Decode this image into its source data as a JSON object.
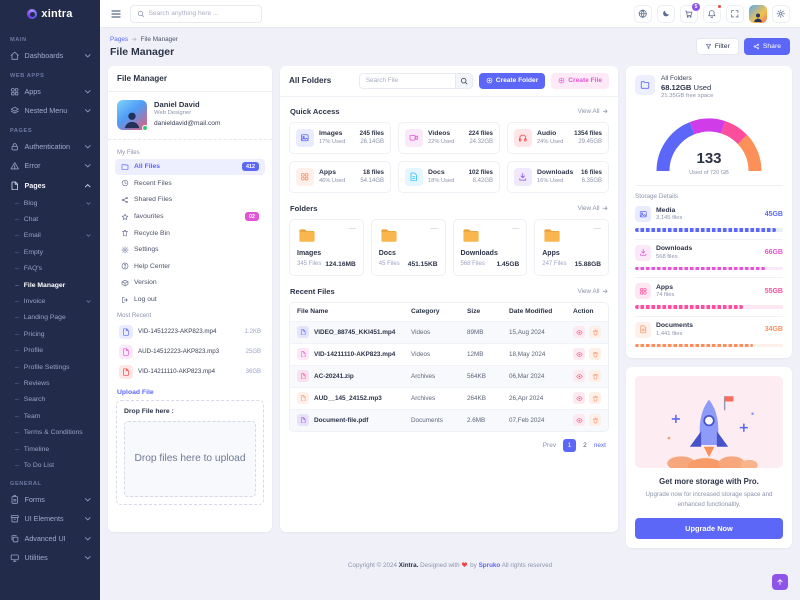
{
  "header": {
    "logo_text": "xintra",
    "search_placeholder": "Search anything here ...",
    "cart_badge": "5",
    "icons": [
      "language-icon",
      "dark-mode-icon",
      "cart-icon",
      "notifications-icon",
      "fullscreen-icon",
      "avatar",
      "settings-icon"
    ]
  },
  "page": {
    "breadcrumb": [
      "Pages",
      "File Manager"
    ],
    "title": "File Manager",
    "filter_label": "Filter",
    "share_label": "Share"
  },
  "sidebar": {
    "sections": [
      {
        "label": "Main",
        "items": [
          {
            "label": "Dashboards",
            "icon": "home-icon",
            "chevron": "down"
          }
        ]
      },
      {
        "label": "Web Apps",
        "items": [
          {
            "label": "Apps",
            "icon": "apps-icon",
            "chevron": "down"
          },
          {
            "label": "Nested Menu",
            "icon": "layers-icon",
            "chevron": "down"
          }
        ]
      },
      {
        "label": "Pages",
        "items": [
          {
            "label": "Authentication",
            "icon": "lock-icon",
            "chevron": "down"
          },
          {
            "label": "Error",
            "icon": "error-icon",
            "chevron": "down"
          },
          {
            "label": "Pages",
            "icon": "pages-icon",
            "chevron": "up",
            "expanded": true,
            "children": [
              {
                "label": "Blog",
                "chevron": "down"
              },
              {
                "label": "Chat"
              },
              {
                "label": "Email",
                "chevron": "down"
              },
              {
                "label": "Empty"
              },
              {
                "label": "FAQ's"
              },
              {
                "label": "File Manager",
                "active": true
              },
              {
                "label": "Invoice",
                "chevron": "down"
              },
              {
                "label": "Landing Page"
              },
              {
                "label": "Pricing"
              },
              {
                "label": "Profile"
              },
              {
                "label": "Profile Settings"
              },
              {
                "label": "Reviews"
              },
              {
                "label": "Search"
              },
              {
                "label": "Team"
              },
              {
                "label": "Terms & Conditions"
              },
              {
                "label": "Timeline"
              },
              {
                "label": "To Do List"
              }
            ]
          }
        ]
      },
      {
        "label": "General",
        "items": [
          {
            "label": "Forms",
            "icon": "forms-icon",
            "chevron": "down"
          },
          {
            "label": "UI Elements",
            "icon": "ui-elements-icon",
            "chevron": "down"
          },
          {
            "label": "Advanced UI",
            "icon": "advanced-ui-icon",
            "chevron": "down"
          },
          {
            "label": "Utilities",
            "icon": "utilities-icon",
            "chevron": "down"
          }
        ]
      }
    ]
  },
  "file_panel": {
    "title": "File Manager",
    "user": {
      "name": "Daniel David",
      "role": "Web Designer",
      "email": "danieldavid@mail.com"
    },
    "my_files_label": "My Files",
    "menu": [
      {
        "label": "All Files",
        "icon": "folder-icon",
        "badge": "412",
        "badge_color": "#5c67f7",
        "active": true
      },
      {
        "label": "Recent Files",
        "icon": "clock-icon"
      },
      {
        "label": "Shared Files",
        "icon": "share-icon"
      },
      {
        "label": "favourites",
        "icon": "star-icon",
        "badge": "02",
        "badge_color": "#e354d4"
      },
      {
        "label": "Recycle Bin",
        "icon": "trash-icon"
      },
      {
        "label": "Settings",
        "icon": "gear-icon"
      },
      {
        "label": "Help Center",
        "icon": "help-icon"
      },
      {
        "label": "Version",
        "icon": "version-icon"
      },
      {
        "label": "Log out",
        "icon": "logout-icon"
      }
    ],
    "most_recent_label": "Most Recent",
    "most_recent": [
      {
        "name": "VID-14512223-AKP823.mp4",
        "size": "1.2KB",
        "color": "#5c67f7"
      },
      {
        "name": "AUD-14512223-AKP823.mp3",
        "size": "25GB",
        "color": "#e354d4"
      },
      {
        "name": "VID-14211110-AKP823.mp4",
        "size": "36GB",
        "color": "#fb4242"
      }
    ],
    "upload_label": "Upload File",
    "drop_title": "Drop File here :",
    "drop_text": "Drop files here to upload"
  },
  "center": {
    "title": "All Folders",
    "search_placeholder": "Search File",
    "create_folder_label": "Create Folder",
    "create_file_label": "Create File",
    "quick_access": {
      "label": "Quick Access",
      "view_all": "View All",
      "cards": [
        {
          "name": "Images",
          "icon": "image-icon",
          "color": "#5c67f7",
          "files": "245 files",
          "used": "17% Used",
          "size": "26.14GB"
        },
        {
          "name": "Videos",
          "icon": "video-icon",
          "color": "#e354d4",
          "files": "224 files",
          "used": "22% Used",
          "size": "24.32GB"
        },
        {
          "name": "Audio",
          "icon": "audio-icon",
          "color": "#fb4242",
          "files": "1354 files",
          "used": "24% Used",
          "size": "29.45GB"
        },
        {
          "name": "Apps",
          "icon": "apps-icon",
          "color": "#fb8e5e",
          "files": "18 files",
          "used": "46% Used",
          "size": "54.14GB"
        },
        {
          "name": "Docs",
          "icon": "doc-icon",
          "color": "#35bdfc",
          "files": "102 files",
          "used": "18% Used",
          "size": "8.42GB"
        },
        {
          "name": "Downloads",
          "icon": "download-icon",
          "color": "#8e54e9",
          "files": "16 files",
          "used": "16% Used",
          "size": "6.35GB"
        }
      ]
    },
    "folders": {
      "label": "Folders",
      "view_all": "View All",
      "cards": [
        {
          "name": "Images",
          "files": "345 Files",
          "size": "124.16MB"
        },
        {
          "name": "Docs",
          "files": "45 Files",
          "size": "451.15KB"
        },
        {
          "name": "Downloads",
          "files": "568 Files",
          "size": "1.45GB"
        },
        {
          "name": "Apps",
          "files": "247 Files",
          "size": "15.88GB"
        }
      ]
    },
    "recent_files": {
      "label": "Recent Files",
      "view_all": "View All",
      "headers": [
        "File Name",
        "Category",
        "Size",
        "Date Modified",
        "Action"
      ],
      "rows": [
        {
          "name": "VIDEO_88745_KKI451.mp4",
          "category": "Videos",
          "size": "89MB",
          "date": "15,Aug 2024",
          "color": "#5c67f7"
        },
        {
          "name": "VID-14211110-AKP823.mp4",
          "category": "Videos",
          "size": "12MB",
          "date": "18,May 2024",
          "color": "#e354d4"
        },
        {
          "name": "AC-20241.zip",
          "category": "Archives",
          "size": "564KB",
          "date": "06,Mar 2024",
          "color": "#fb4e9d"
        },
        {
          "name": "AUD__145_24152.mp3",
          "category": "Archives",
          "size": "264KB",
          "date": "26,Apr 2024",
          "color": "#fb8e5e"
        },
        {
          "name": "Document-file.pdf",
          "category": "Documents",
          "size": "2.6MB",
          "date": "07,Feb 2024",
          "color": "#8e54e9"
        }
      ],
      "pagination": {
        "prev": "Prev",
        "pages": [
          "1",
          "2"
        ],
        "active": "1",
        "next": "next"
      }
    }
  },
  "right": {
    "storage": {
      "title": "All Folders",
      "used_bold": "68.12GB",
      "used_suffix": " Used",
      "free": "21.35GB free space",
      "gauge": {
        "value": "133",
        "caption": "Used of 720 GB",
        "segments": [
          {
            "color": "#5c67f7",
            "fraction": 0.38
          },
          {
            "color": "#cf3ce8",
            "fraction": 0.22
          },
          {
            "color": "#fb4e9d",
            "fraction": 0.16
          },
          {
            "color": "#fb9058",
            "fraction": 0.24
          }
        ]
      }
    },
    "details": {
      "label": "Storage Details",
      "items": [
        {
          "name": "Media",
          "files": "3,145 files",
          "value": "45GB",
          "color": "#5c67f7",
          "icon": "image-icon",
          "percent": 95
        },
        {
          "name": "Downloads",
          "files": "568 files",
          "value": "66GB",
          "color": "#e354d4",
          "icon": "download-icon",
          "percent": 88
        },
        {
          "name": "Apps",
          "files": "74 files",
          "value": "55GB",
          "color": "#fb4e9d",
          "icon": "apps-icon",
          "percent": 73
        },
        {
          "name": "Documents",
          "files": "1,441 files",
          "value": "34GB",
          "color": "#fb8e5e",
          "icon": "doc-icon",
          "percent": 80
        }
      ]
    },
    "pro": {
      "title": "Get more storage with Pro.",
      "description": "Upgrade now for increased storage space and enhanced functionality.",
      "button": "Upgrade Now"
    }
  },
  "footer": {
    "prefix": "Copyright © 2024",
    "brand": "Xintra.",
    "middle": "Designed with",
    "heart": "❤",
    "by": "by",
    "credit": "Spruko",
    "suffix": "All rights reserved"
  }
}
